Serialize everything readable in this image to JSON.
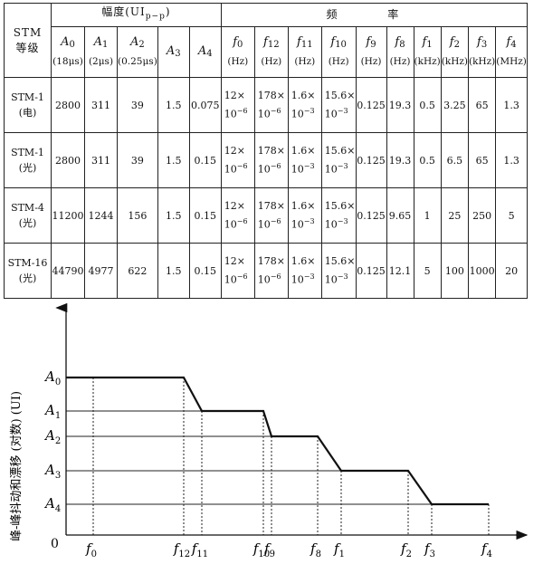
{
  "table": {
    "corner": [
      "STM",
      "等级"
    ],
    "amp_group": "幅度(UIp−p)",
    "freq_group": "频 率",
    "amp_cols": [
      {
        "sym": "A",
        "sub": "0",
        "unit": "(18μs)"
      },
      {
        "sym": "A",
        "sub": "1",
        "unit": "(2μs)"
      },
      {
        "sym": "A",
        "sub": "2",
        "unit": "(0.25μs)"
      },
      {
        "sym": "A",
        "sub": "3",
        "unit": ""
      },
      {
        "sym": "A",
        "sub": "4",
        "unit": ""
      }
    ],
    "freq_cols": [
      {
        "sym": "f",
        "sub": "0",
        "unit": "(Hz)"
      },
      {
        "sym": "f",
        "sub": "12",
        "unit": "(Hz)"
      },
      {
        "sym": "f",
        "sub": "11",
        "unit": "(Hz)"
      },
      {
        "sym": "f",
        "sub": "10",
        "unit": "(Hz)"
      },
      {
        "sym": "f",
        "sub": "9",
        "unit": "(Hz)"
      },
      {
        "sym": "f",
        "sub": "8",
        "unit": "(Hz)"
      },
      {
        "sym": "f",
        "sub": "1",
        "unit": "(kHz)"
      },
      {
        "sym": "f",
        "sub": "2",
        "unit": "(kHz)"
      },
      {
        "sym": "f",
        "sub": "3",
        "unit": "(kHz)"
      },
      {
        "sym": "f",
        "sub": "4",
        "unit": "(MHz)"
      }
    ],
    "sci": {
      "f0": [
        "12×",
        "10",
        "−6"
      ],
      "f12": [
        "178×",
        "10",
        "−6"
      ],
      "f11": [
        "1.6×",
        "10",
        "−3"
      ],
      "f10": [
        "15.6×",
        "10",
        "−3"
      ]
    },
    "rows": [
      {
        "grade": [
          "STM-1",
          "(电)"
        ],
        "amp": [
          "2800",
          "311",
          "39",
          "1.5",
          "0.075"
        ],
        "freq": [
          "0.125",
          "19.3",
          "0.5",
          "3.25",
          "65",
          "1.3"
        ]
      },
      {
        "grade": [
          "STM-1",
          "(光)"
        ],
        "amp": [
          "2800",
          "311",
          "39",
          "1.5",
          "0.15"
        ],
        "freq": [
          "0.125",
          "19.3",
          "0.5",
          "6.5",
          "65",
          "1.3"
        ]
      },
      {
        "grade": [
          "STM-4",
          "(光)"
        ],
        "amp": [
          "11200",
          "1244",
          "156",
          "1.5",
          "0.15"
        ],
        "freq": [
          "0.125",
          "9.65",
          "1",
          "25",
          "250",
          "5"
        ]
      },
      {
        "grade": [
          "STM-16",
          "(光)"
        ],
        "amp": [
          "44790",
          "4977",
          "622",
          "1.5",
          "0.15"
        ],
        "freq": [
          "0.125",
          "12.1",
          "5",
          "100",
          "1000",
          "20"
        ]
      }
    ]
  },
  "diagram": {
    "ylabel": "峰-峰抖动和漂移 (对数) (UI)",
    "origin": "0",
    "y_levels": [
      {
        "sym": "A",
        "sub": "0"
      },
      {
        "sym": "A",
        "sub": "1"
      },
      {
        "sym": "A",
        "sub": "2"
      },
      {
        "sym": "A",
        "sub": "3"
      },
      {
        "sym": "A",
        "sub": "4"
      }
    ],
    "x_marks": [
      {
        "sym": "f",
        "sub": "0"
      },
      {
        "sym": "f",
        "sub": "12"
      },
      {
        "sym": "f",
        "sub": "11"
      },
      {
        "sym": "f",
        "sub": "10"
      },
      {
        "sym": "f",
        "sub": "9"
      },
      {
        "sym": "f",
        "sub": "8"
      },
      {
        "sym": "f",
        "sub": "1"
      },
      {
        "sym": "f",
        "sub": "2"
      },
      {
        "sym": "f",
        "sub": "3"
      },
      {
        "sym": "f",
        "sub": "4"
      }
    ]
  }
}
